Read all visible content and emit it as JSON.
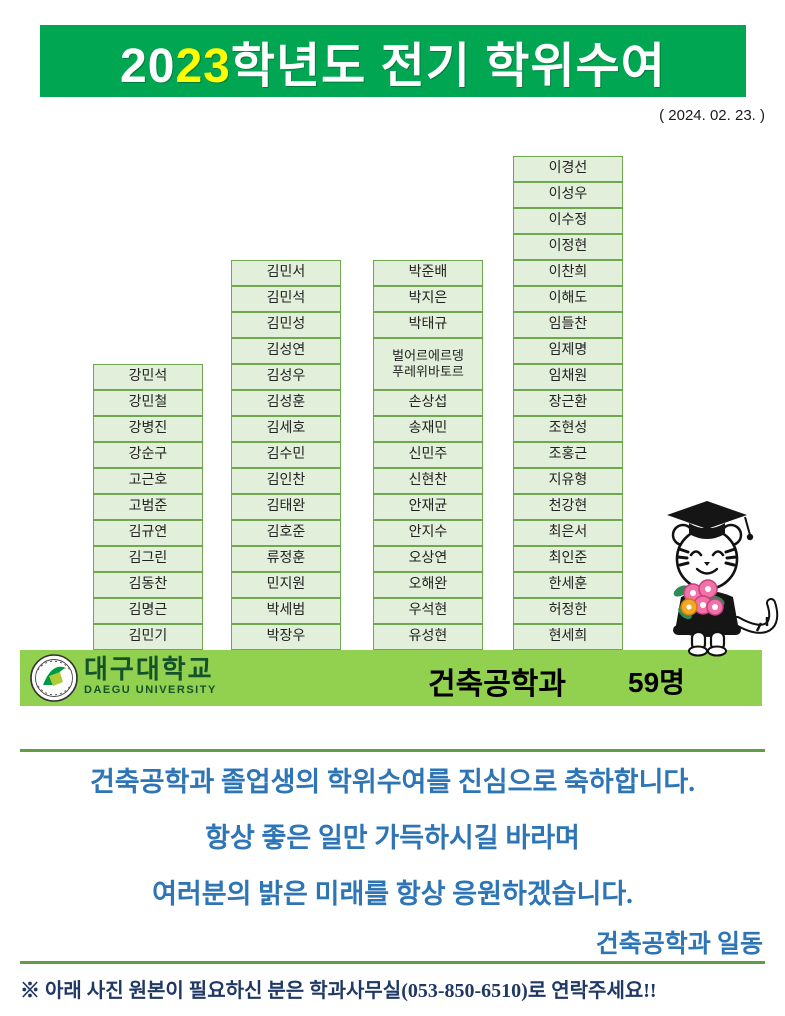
{
  "header": {
    "title_prefix": "20",
    "title_highlight": "23",
    "title_suffix": "학년도 전기 학위수여",
    "date": "( 2024. 02. 23. )"
  },
  "columns": [
    {
      "names": [
        "강민석",
        "강민철",
        "강병진",
        "강순구",
        "고근호",
        "고범준",
        "김규연",
        "김그린",
        "김동찬",
        "김명근",
        "김민기"
      ]
    },
    {
      "names": [
        "김민서",
        "김민석",
        "김민성",
        "김성연",
        "김성우",
        "김성훈",
        "김세호",
        "김수민",
        "김인찬",
        "김태완",
        "김호준",
        "류정훈",
        "민지원",
        "박세범",
        "박장우"
      ]
    },
    {
      "names": [
        "박준배",
        "박지은",
        "박태규",
        "벌어르에르뎅\n푸레위바토르",
        "손상섭",
        "송재민",
        "신민주",
        "신현찬",
        "안재균",
        "안지수",
        "오상연",
        "오해완",
        "우석현",
        "유성현"
      ]
    },
    {
      "names": [
        "이경선",
        "이성우",
        "이수정",
        "이정현",
        "이찬희",
        "이해도",
        "임들찬",
        "임제명",
        "임채원",
        "장근환",
        "조현성",
        "조홍근",
        "지유형",
        "천강현",
        "최은서",
        "최인준",
        "한세훈",
        "허정한",
        "현세희"
      ]
    }
  ],
  "footer_bar": {
    "university_kr": "대구대학교",
    "university_en": "DAEGU UNIVERSITY",
    "department": "건축공학과",
    "count": "59명"
  },
  "icons": {
    "university_emblem": "daegu-university-emblem",
    "mascot": "tiger-graduate-mascot"
  },
  "message": {
    "line1": "건축공학과 졸업생의 학위수여를 진심으로 축하합니다.",
    "line2": "항상 좋은 일만 가득하시길 바라며",
    "line3": "여러분의 밝은 미래를 항상 응원하겠습니다.",
    "signoff": "건축공학과 일동"
  },
  "note": "※ 아래 사진 원본이 필요하신 분은 학과사무실(053-850-6510)로 연락주세요!!",
  "colors": {
    "header_green": "#00A651",
    "highlight_yellow": "#FFFF00",
    "footer_green": "#92D050",
    "cell_fill": "#E2EFDA",
    "cell_border": "#6FA84F",
    "message_blue": "#2E75B6",
    "note_navy": "#1F3864"
  }
}
